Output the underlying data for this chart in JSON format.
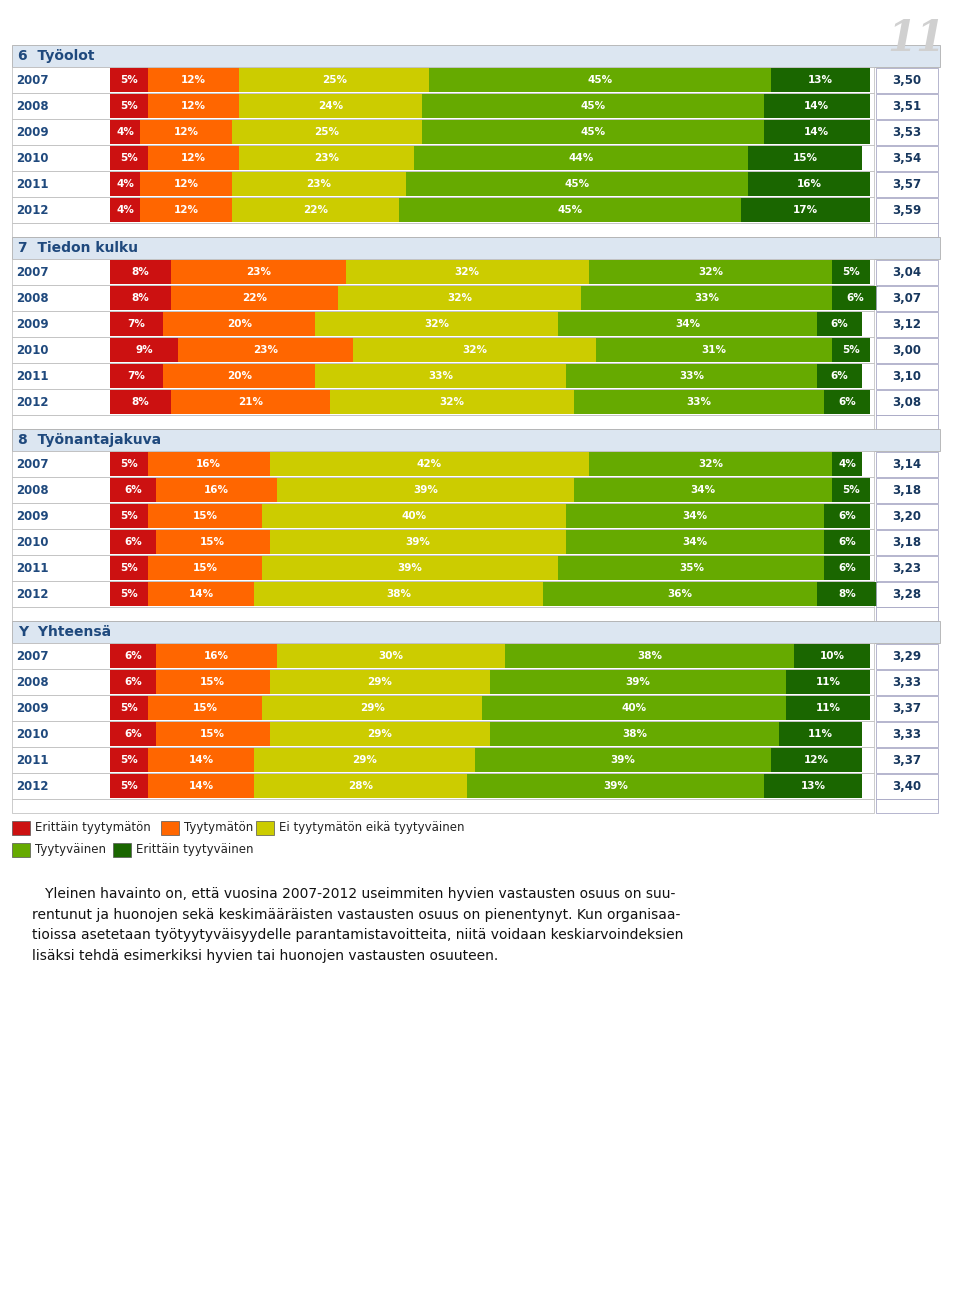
{
  "sections": [
    {
      "label": "6  Työolot",
      "rows": [
        {
          "year": "2007",
          "values": [
            5,
            12,
            25,
            45,
            13
          ],
          "score": "3,50"
        },
        {
          "year": "2008",
          "values": [
            5,
            12,
            24,
            45,
            14
          ],
          "score": "3,51"
        },
        {
          "year": "2009",
          "values": [
            4,
            12,
            25,
            45,
            14
          ],
          "score": "3,53"
        },
        {
          "year": "2010",
          "values": [
            5,
            12,
            23,
            44,
            15
          ],
          "score": "3,54"
        },
        {
          "year": "2011",
          "values": [
            4,
            12,
            23,
            45,
            16
          ],
          "score": "3,57"
        },
        {
          "year": "2012",
          "values": [
            4,
            12,
            22,
            45,
            17
          ],
          "score": "3,59"
        }
      ]
    },
    {
      "label": "7  Tiedon kulku",
      "rows": [
        {
          "year": "2007",
          "values": [
            8,
            23,
            32,
            32,
            5
          ],
          "score": "3,04"
        },
        {
          "year": "2008",
          "values": [
            8,
            22,
            32,
            33,
            6
          ],
          "score": "3,07"
        },
        {
          "year": "2009",
          "values": [
            7,
            20,
            32,
            34,
            6
          ],
          "score": "3,12"
        },
        {
          "year": "2010",
          "values": [
            9,
            23,
            32,
            31,
            5
          ],
          "score": "3,00"
        },
        {
          "year": "2011",
          "values": [
            7,
            20,
            33,
            33,
            6
          ],
          "score": "3,10"
        },
        {
          "year": "2012",
          "values": [
            8,
            21,
            32,
            33,
            6
          ],
          "score": "3,08"
        }
      ]
    },
    {
      "label": "8  Työnantajakuva",
      "rows": [
        {
          "year": "2007",
          "values": [
            5,
            16,
            42,
            32,
            4
          ],
          "score": "3,14"
        },
        {
          "year": "2008",
          "values": [
            6,
            16,
            39,
            34,
            5
          ],
          "score": "3,18"
        },
        {
          "year": "2009",
          "values": [
            5,
            15,
            40,
            34,
            6
          ],
          "score": "3,20"
        },
        {
          "year": "2010",
          "values": [
            6,
            15,
            39,
            34,
            6
          ],
          "score": "3,18"
        },
        {
          "year": "2011",
          "values": [
            5,
            15,
            39,
            35,
            6
          ],
          "score": "3,23"
        },
        {
          "year": "2012",
          "values": [
            5,
            14,
            38,
            36,
            8
          ],
          "score": "3,28"
        }
      ]
    },
    {
      "label": "Y  Yhteensä",
      "rows": [
        {
          "year": "2007",
          "values": [
            6,
            16,
            30,
            38,
            10
          ],
          "score": "3,29"
        },
        {
          "year": "2008",
          "values": [
            6,
            15,
            29,
            39,
            11
          ],
          "score": "3,33"
        },
        {
          "year": "2009",
          "values": [
            5,
            15,
            29,
            40,
            11
          ],
          "score": "3,37"
        },
        {
          "year": "2010",
          "values": [
            6,
            15,
            29,
            38,
            11
          ],
          "score": "3,33"
        },
        {
          "year": "2011",
          "values": [
            5,
            14,
            29,
            39,
            12
          ],
          "score": "3,37"
        },
        {
          "year": "2012",
          "values": [
            5,
            14,
            28,
            39,
            13
          ],
          "score": "3,40"
        }
      ]
    }
  ],
  "colors": [
    "#cc1111",
    "#ff6600",
    "#cccc00",
    "#66aa00",
    "#1a6600"
  ],
  "legend_labels": [
    "Erittäin tyytymätön",
    "Tyytymätön",
    "Ei tyytymätön eikä tyytyväinen",
    "Tyytyväinen",
    "Erittäin tyytyväinen"
  ],
  "footer_text": "   Yleinen havainto on, että vuosina 2007-2012 useimmiten hyvien vastausten osuus on suu-\nrentunut ja huonojen sekä keskimääräisten vastausten osuus on pienentynyt. Kun organisaa-\ntioissa asetetaan työtyytyväisyydelle parantamistavoitteita, niitä voidaan keskiarvoindeksien\nlisäksi tehdä esimerkiksi hyvien tai huonojen vastausten osuuteen.",
  "page_number": "11",
  "background_color": "#ffffff",
  "section_header_bg": "#dce6f1",
  "section_label_color": "#1f497d",
  "score_color": "#17375e",
  "year_color": "#1f497d",
  "border_color": "#b8cce4"
}
